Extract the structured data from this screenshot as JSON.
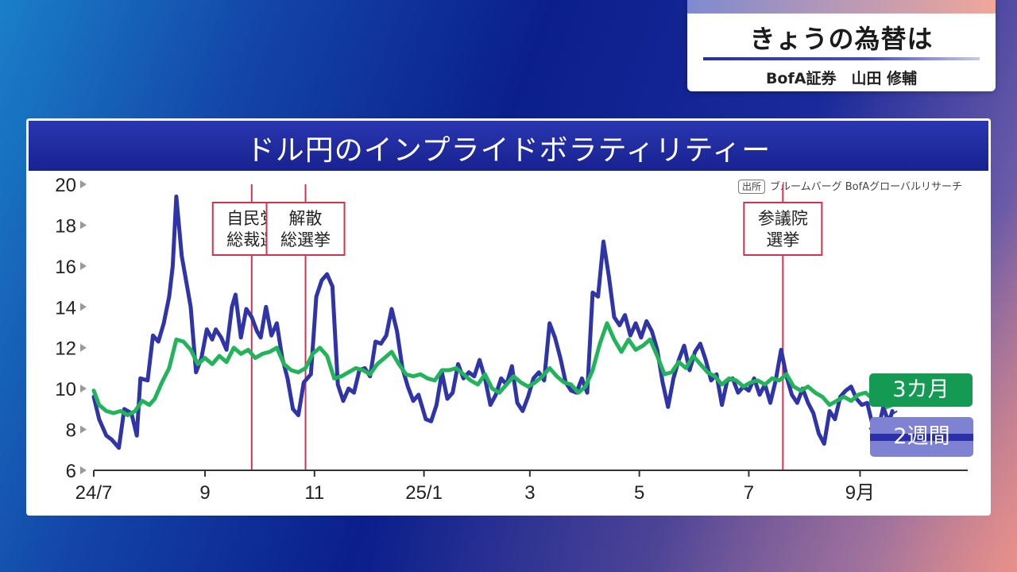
{
  "header": {
    "title": "きょうの為替は",
    "subtitle": "BofA証券　山田 修輔"
  },
  "chart_title": "ドル円のインプライドボラティリティー",
  "source": {
    "box_label": "出所",
    "text": "ブルームバーグ BofAグローバルリサーチ"
  },
  "colors": {
    "two_week": "#2f35a6",
    "three_month": "#22b35b",
    "event_line": "#d2334f",
    "title_bar": "#1c2796"
  },
  "chart_data": {
    "type": "line",
    "title": "ドル円のインプライドボラティリティー",
    "xlabel": "",
    "ylabel": "",
    "ylim": [
      6,
      20
    ],
    "yticks": [
      6,
      8,
      10,
      12,
      14,
      16,
      18,
      20
    ],
    "x_range": [
      "2024-07-01",
      "2025-10-31"
    ],
    "xticks": [
      {
        "label": "24/7",
        "date": "2024-07-01"
      },
      {
        "label": "9",
        "date": "2024-09-01"
      },
      {
        "label": "11",
        "date": "2024-11-01"
      },
      {
        "label": "25/1",
        "date": "2025-01-01"
      },
      {
        "label": "3",
        "date": "2025-03-01"
      },
      {
        "label": "5",
        "date": "2025-05-01"
      },
      {
        "label": "7",
        "date": "2025-07-01"
      },
      {
        "label": "9月",
        "date": "2025-09-01"
      }
    ],
    "events": [
      {
        "label_lines": [
          "自民党",
          "総裁選"
        ],
        "date": "2024-09-27"
      },
      {
        "label_lines": [
          "解散",
          "総選挙"
        ],
        "date": "2024-10-27"
      },
      {
        "label_lines": [
          "参議院",
          "選挙"
        ],
        "date": "2025-07-20"
      }
    ],
    "series": [
      {
        "name": "2週間",
        "points": [
          [
            "2024-07-01",
            9.6
          ],
          [
            "2024-07-04",
            8.5
          ],
          [
            "2024-07-08",
            7.7
          ],
          [
            "2024-07-11",
            7.5
          ],
          [
            "2024-07-15",
            7.1
          ],
          [
            "2024-07-18",
            9.0
          ],
          [
            "2024-07-22",
            8.8
          ],
          [
            "2024-07-25",
            7.7
          ],
          [
            "2024-07-27",
            10.5
          ],
          [
            "2024-07-31",
            10.4
          ],
          [
            "2024-08-03",
            12.6
          ],
          [
            "2024-08-06",
            12.3
          ],
          [
            "2024-08-09",
            13.2
          ],
          [
            "2024-08-12",
            14.5
          ],
          [
            "2024-08-14",
            16.0
          ],
          [
            "2024-08-16",
            19.4
          ],
          [
            "2024-08-19",
            16.5
          ],
          [
            "2024-08-22",
            15.0
          ],
          [
            "2024-08-24",
            14.0
          ],
          [
            "2024-08-27",
            10.8
          ],
          [
            "2024-08-30",
            11.5
          ],
          [
            "2024-09-02",
            12.9
          ],
          [
            "2024-09-05",
            12.4
          ],
          [
            "2024-09-07",
            12.9
          ],
          [
            "2024-09-10",
            12.5
          ],
          [
            "2024-09-13",
            11.9
          ],
          [
            "2024-09-16",
            14.0
          ],
          [
            "2024-09-18",
            14.6
          ],
          [
            "2024-09-21",
            12.5
          ],
          [
            "2024-09-24",
            13.9
          ],
          [
            "2024-09-27",
            13.5
          ],
          [
            "2024-09-30",
            12.8
          ],
          [
            "2024-10-02",
            12.5
          ],
          [
            "2024-10-05",
            14.0
          ],
          [
            "2024-10-08",
            12.6
          ],
          [
            "2024-10-11",
            13.2
          ],
          [
            "2024-10-14",
            11.5
          ],
          [
            "2024-10-17",
            10.5
          ],
          [
            "2024-10-20",
            9.0
          ],
          [
            "2024-10-23",
            8.7
          ],
          [
            "2024-10-26",
            10.3
          ],
          [
            "2024-10-30",
            10.7
          ],
          [
            "2024-11-02",
            14.5
          ],
          [
            "2024-11-05",
            15.3
          ],
          [
            "2024-11-08",
            15.6
          ],
          [
            "2024-11-11",
            15.0
          ],
          [
            "2024-11-14",
            10.2
          ],
          [
            "2024-11-17",
            9.4
          ],
          [
            "2024-11-20",
            10.0
          ],
          [
            "2024-11-23",
            9.8
          ],
          [
            "2024-11-26",
            10.9
          ],
          [
            "2024-11-29",
            11.0
          ],
          [
            "2024-12-02",
            10.6
          ],
          [
            "2024-12-05",
            12.3
          ],
          [
            "2024-12-08",
            12.2
          ],
          [
            "2024-12-11",
            12.6
          ],
          [
            "2024-12-14",
            13.9
          ],
          [
            "2024-12-17",
            12.8
          ],
          [
            "2024-12-20",
            11.0
          ],
          [
            "2024-12-23",
            10.1
          ],
          [
            "2024-12-26",
            9.4
          ],
          [
            "2024-12-29",
            9.7
          ],
          [
            "2025-01-02",
            8.5
          ],
          [
            "2025-01-05",
            8.4
          ],
          [
            "2025-01-08",
            9.2
          ],
          [
            "2025-01-11",
            10.8
          ],
          [
            "2025-01-14",
            9.5
          ],
          [
            "2025-01-17",
            9.8
          ],
          [
            "2025-01-20",
            11.2
          ],
          [
            "2025-01-23",
            10.5
          ],
          [
            "2025-01-26",
            10.8
          ],
          [
            "2025-01-29",
            10.6
          ],
          [
            "2025-02-01",
            11.4
          ],
          [
            "2025-02-04",
            10.5
          ],
          [
            "2025-02-07",
            9.2
          ],
          [
            "2025-02-10",
            9.7
          ],
          [
            "2025-02-13",
            10.5
          ],
          [
            "2025-02-16",
            10.2
          ],
          [
            "2025-02-19",
            11.1
          ],
          [
            "2025-02-22",
            9.3
          ],
          [
            "2025-02-25",
            8.9
          ],
          [
            "2025-02-28",
            9.6
          ],
          [
            "2025-03-03",
            10.5
          ],
          [
            "2025-03-06",
            10.8
          ],
          [
            "2025-03-09",
            10.4
          ],
          [
            "2025-03-12",
            13.2
          ],
          [
            "2025-03-15",
            12.5
          ],
          [
            "2025-03-18",
            11.5
          ],
          [
            "2025-03-21",
            10.3
          ],
          [
            "2025-03-24",
            9.9
          ],
          [
            "2025-03-27",
            9.8
          ],
          [
            "2025-03-30",
            10.5
          ],
          [
            "2025-04-02",
            9.8
          ],
          [
            "2025-04-05",
            14.7
          ],
          [
            "2025-04-08",
            14.5
          ],
          [
            "2025-04-11",
            17.2
          ],
          [
            "2025-04-14",
            15.5
          ],
          [
            "2025-04-17",
            13.5
          ],
          [
            "2025-04-20",
            13.1
          ],
          [
            "2025-04-23",
            13.6
          ],
          [
            "2025-04-26",
            12.6
          ],
          [
            "2025-04-29",
            13.2
          ],
          [
            "2025-05-02",
            12.5
          ],
          [
            "2025-05-05",
            13.3
          ],
          [
            "2025-05-08",
            12.8
          ],
          [
            "2025-05-11",
            11.9
          ],
          [
            "2025-05-14",
            10.3
          ],
          [
            "2025-05-17",
            9.1
          ],
          [
            "2025-05-20",
            10.5
          ],
          [
            "2025-05-23",
            11.4
          ],
          [
            "2025-05-26",
            12.1
          ],
          [
            "2025-05-29",
            10.9
          ],
          [
            "2025-06-01",
            11.8
          ],
          [
            "2025-06-04",
            12.2
          ],
          [
            "2025-06-07",
            11.4
          ],
          [
            "2025-06-10",
            10.4
          ],
          [
            "2025-06-13",
            10.7
          ],
          [
            "2025-06-16",
            9.2
          ],
          [
            "2025-06-19",
            10.4
          ],
          [
            "2025-06-22",
            10.5
          ],
          [
            "2025-06-25",
            9.8
          ],
          [
            "2025-06-28",
            10.1
          ],
          [
            "2025-07-01",
            9.9
          ],
          [
            "2025-07-04",
            10.5
          ],
          [
            "2025-07-07",
            9.7
          ],
          [
            "2025-07-10",
            10.2
          ],
          [
            "2025-07-13",
            9.3
          ],
          [
            "2025-07-16",
            10.4
          ],
          [
            "2025-07-19",
            11.9
          ],
          [
            "2025-07-22",
            10.6
          ],
          [
            "2025-07-25",
            9.7
          ],
          [
            "2025-07-28",
            9.3
          ],
          [
            "2025-07-31",
            10.0
          ],
          [
            "2025-08-03",
            9.3
          ],
          [
            "2025-08-06",
            8.8
          ],
          [
            "2025-08-09",
            7.8
          ],
          [
            "2025-08-12",
            7.3
          ],
          [
            "2025-08-15",
            8.9
          ],
          [
            "2025-08-18",
            8.5
          ],
          [
            "2025-08-21",
            9.6
          ],
          [
            "2025-08-24",
            9.9
          ],
          [
            "2025-08-27",
            10.1
          ],
          [
            "2025-08-30",
            9.5
          ],
          [
            "2025-09-02",
            9.2
          ],
          [
            "2025-09-05",
            9.3
          ],
          [
            "2025-09-08",
            8.2
          ],
          [
            "2025-09-11",
            8.0
          ],
          [
            "2025-09-14",
            9.1
          ],
          [
            "2025-09-17",
            8.3
          ],
          [
            "2025-09-19",
            8.9
          ]
        ]
      },
      {
        "name": "3カ月",
        "points": [
          [
            "2024-07-01",
            9.9
          ],
          [
            "2024-07-04",
            9.2
          ],
          [
            "2024-07-08",
            8.9
          ],
          [
            "2024-07-12",
            8.8
          ],
          [
            "2024-07-16",
            8.9
          ],
          [
            "2024-07-20",
            8.7
          ],
          [
            "2024-07-24",
            8.9
          ],
          [
            "2024-07-28",
            9.4
          ],
          [
            "2024-08-01",
            9.2
          ],
          [
            "2024-08-04",
            9.5
          ],
          [
            "2024-08-08",
            10.3
          ],
          [
            "2024-08-12",
            11.0
          ],
          [
            "2024-08-16",
            12.4
          ],
          [
            "2024-08-20",
            12.3
          ],
          [
            "2024-08-24",
            11.9
          ],
          [
            "2024-08-28",
            11.2
          ],
          [
            "2024-09-01",
            11.5
          ],
          [
            "2024-09-05",
            11.2
          ],
          [
            "2024-09-09",
            11.6
          ],
          [
            "2024-09-13",
            11.3
          ],
          [
            "2024-09-17",
            12.0
          ],
          [
            "2024-09-21",
            11.7
          ],
          [
            "2024-09-25",
            11.9
          ],
          [
            "2024-09-29",
            11.5
          ],
          [
            "2024-10-03",
            11.7
          ],
          [
            "2024-10-07",
            11.8
          ],
          [
            "2024-10-11",
            12.0
          ],
          [
            "2024-10-15",
            11.2
          ],
          [
            "2024-10-19",
            10.9
          ],
          [
            "2024-10-23",
            10.8
          ],
          [
            "2024-10-27",
            11.0
          ],
          [
            "2024-10-31",
            11.7
          ],
          [
            "2024-11-04",
            12.0
          ],
          [
            "2024-11-08",
            11.6
          ],
          [
            "2024-11-12",
            10.5
          ],
          [
            "2024-11-16",
            10.6
          ],
          [
            "2024-11-20",
            10.8
          ],
          [
            "2024-11-24",
            11.0
          ],
          [
            "2024-11-28",
            10.9
          ],
          [
            "2024-12-02",
            10.7
          ],
          [
            "2024-12-06",
            11.2
          ],
          [
            "2024-12-10",
            11.5
          ],
          [
            "2024-12-14",
            11.8
          ],
          [
            "2024-12-18",
            11.2
          ],
          [
            "2024-12-22",
            10.7
          ],
          [
            "2024-12-26",
            10.6
          ],
          [
            "2024-12-30",
            10.7
          ],
          [
            "2025-01-03",
            10.5
          ],
          [
            "2025-01-07",
            10.4
          ],
          [
            "2025-01-11",
            10.9
          ],
          [
            "2025-01-15",
            10.9
          ],
          [
            "2025-01-19",
            11.0
          ],
          [
            "2025-01-23",
            10.7
          ],
          [
            "2025-01-27",
            10.4
          ],
          [
            "2025-01-31",
            10.2
          ],
          [
            "2025-02-04",
            10.7
          ],
          [
            "2025-02-08",
            10.0
          ],
          [
            "2025-02-12",
            9.8
          ],
          [
            "2025-02-16",
            10.2
          ],
          [
            "2025-02-20",
            10.6
          ],
          [
            "2025-02-24",
            10.3
          ],
          [
            "2025-02-28",
            10.1
          ],
          [
            "2025-03-04",
            10.3
          ],
          [
            "2025-03-08",
            10.6
          ],
          [
            "2025-03-12",
            11.0
          ],
          [
            "2025-03-16",
            10.6
          ],
          [
            "2025-03-20",
            10.3
          ],
          [
            "2025-03-24",
            10.2
          ],
          [
            "2025-03-28",
            9.8
          ],
          [
            "2025-04-01",
            10.1
          ],
          [
            "2025-04-05",
            10.9
          ],
          [
            "2025-04-09",
            12.2
          ],
          [
            "2025-04-13",
            13.2
          ],
          [
            "2025-04-17",
            12.4
          ],
          [
            "2025-04-21",
            11.8
          ],
          [
            "2025-04-25",
            12.4
          ],
          [
            "2025-04-29",
            11.9
          ],
          [
            "2025-05-03",
            12.1
          ],
          [
            "2025-05-07",
            12.4
          ],
          [
            "2025-05-11",
            11.6
          ],
          [
            "2025-05-15",
            10.7
          ],
          [
            "2025-05-19",
            10.8
          ],
          [
            "2025-05-23",
            11.3
          ],
          [
            "2025-05-27",
            11.0
          ],
          [
            "2025-05-31",
            11.6
          ],
          [
            "2025-06-04",
            11.2
          ],
          [
            "2025-06-08",
            10.8
          ],
          [
            "2025-06-12",
            10.6
          ],
          [
            "2025-06-16",
            10.2
          ],
          [
            "2025-06-20",
            10.5
          ],
          [
            "2025-06-24",
            10.4
          ],
          [
            "2025-06-28",
            10.1
          ],
          [
            "2025-07-02",
            10.3
          ],
          [
            "2025-07-06",
            10.4
          ],
          [
            "2025-07-10",
            10.2
          ],
          [
            "2025-07-14",
            10.5
          ],
          [
            "2025-07-18",
            10.4
          ],
          [
            "2025-07-22",
            10.7
          ],
          [
            "2025-07-26",
            10.1
          ],
          [
            "2025-07-30",
            9.9
          ],
          [
            "2025-08-03",
            10.1
          ],
          [
            "2025-08-07",
            9.8
          ],
          [
            "2025-08-11",
            9.6
          ],
          [
            "2025-08-15",
            9.2
          ],
          [
            "2025-08-19",
            9.4
          ],
          [
            "2025-08-23",
            9.6
          ],
          [
            "2025-08-27",
            9.4
          ],
          [
            "2025-08-31",
            9.7
          ],
          [
            "2025-09-04",
            9.8
          ],
          [
            "2025-09-08",
            9.5
          ],
          [
            "2025-09-12",
            9.6
          ],
          [
            "2025-09-16",
            9.1
          ],
          [
            "2025-09-19",
            9.2
          ]
        ]
      }
    ]
  },
  "legend": {
    "three_month": "3カ月",
    "two_week": "2週間"
  }
}
